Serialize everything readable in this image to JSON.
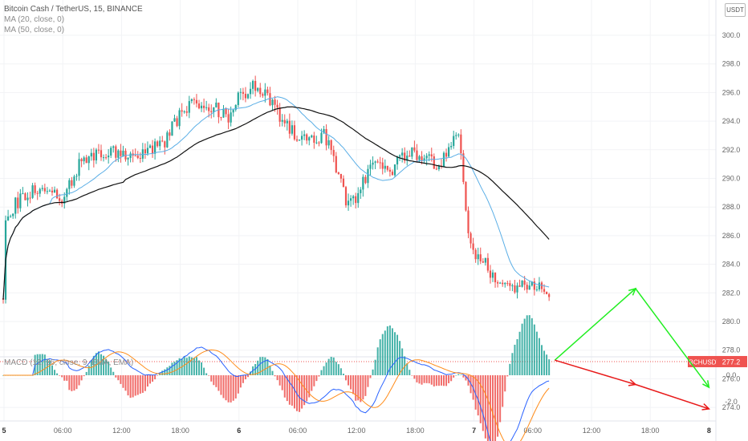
{
  "chart_data": {
    "type": "candlestick",
    "symbol": "Bitcoin Cash / TetherUS, 15, BINANCE",
    "quote_currency": "USDT",
    "price_ticker": "BCHUSDT",
    "last_price": 277.2,
    "y_axis": {
      "ticks": [
        300.0,
        298.0,
        296.0,
        294.0,
        292.0,
        290.0,
        288.0,
        286.0,
        284.0,
        282.0,
        280.0,
        278.0,
        276.0,
        274.0
      ],
      "labels": [
        "300.0",
        "298.0",
        "296.0",
        "294.0",
        "292.0",
        "290.0",
        "288.0",
        "286.0",
        "284.0",
        "282.0",
        "280.0",
        "278.0",
        "276.0",
        "274.0"
      ]
    },
    "x_axis": {
      "labels": [
        "5",
        "06:00",
        "12:00",
        "18:00",
        "6",
        "06:00",
        "12:00",
        "18:00",
        "7",
        "06:00",
        "12:00",
        "18:00",
        "8"
      ]
    },
    "indicators": {
      "ma20": {
        "label": "MA (20, close, 0)",
        "color": "#5aaee6"
      },
      "ma50": {
        "label": "MA (50, close, 0)",
        "color": "#111111"
      },
      "macd": {
        "label": "MACD (12, 26, close, 9, EMA, EMA)",
        "macd_color": "#2962ff",
        "signal_color": "#ff8c1a",
        "pos_color": "#26a69a",
        "neg_color": "#ef5350",
        "ticks": [
          0.0,
          -2.0
        ],
        "tick_labels": [
          "0.0",
          "-2.0"
        ]
      }
    },
    "drawings": [
      {
        "color": "#22ee22",
        "points": [
          [
            277.3,
            "7 08:15"
          ],
          [
            282.3,
            "7 16:30"
          ],
          [
            275.4,
            "8 00:00"
          ]
        ]
      },
      {
        "color": "#e81a1a",
        "points": [
          [
            277.3,
            "7 08:15"
          ],
          [
            275.6,
            "7 16:30"
          ],
          [
            273.9,
            "8 00:00"
          ]
        ]
      }
    ],
    "colors": {
      "up": "#26a69a",
      "down": "#ef5350"
    }
  }
}
